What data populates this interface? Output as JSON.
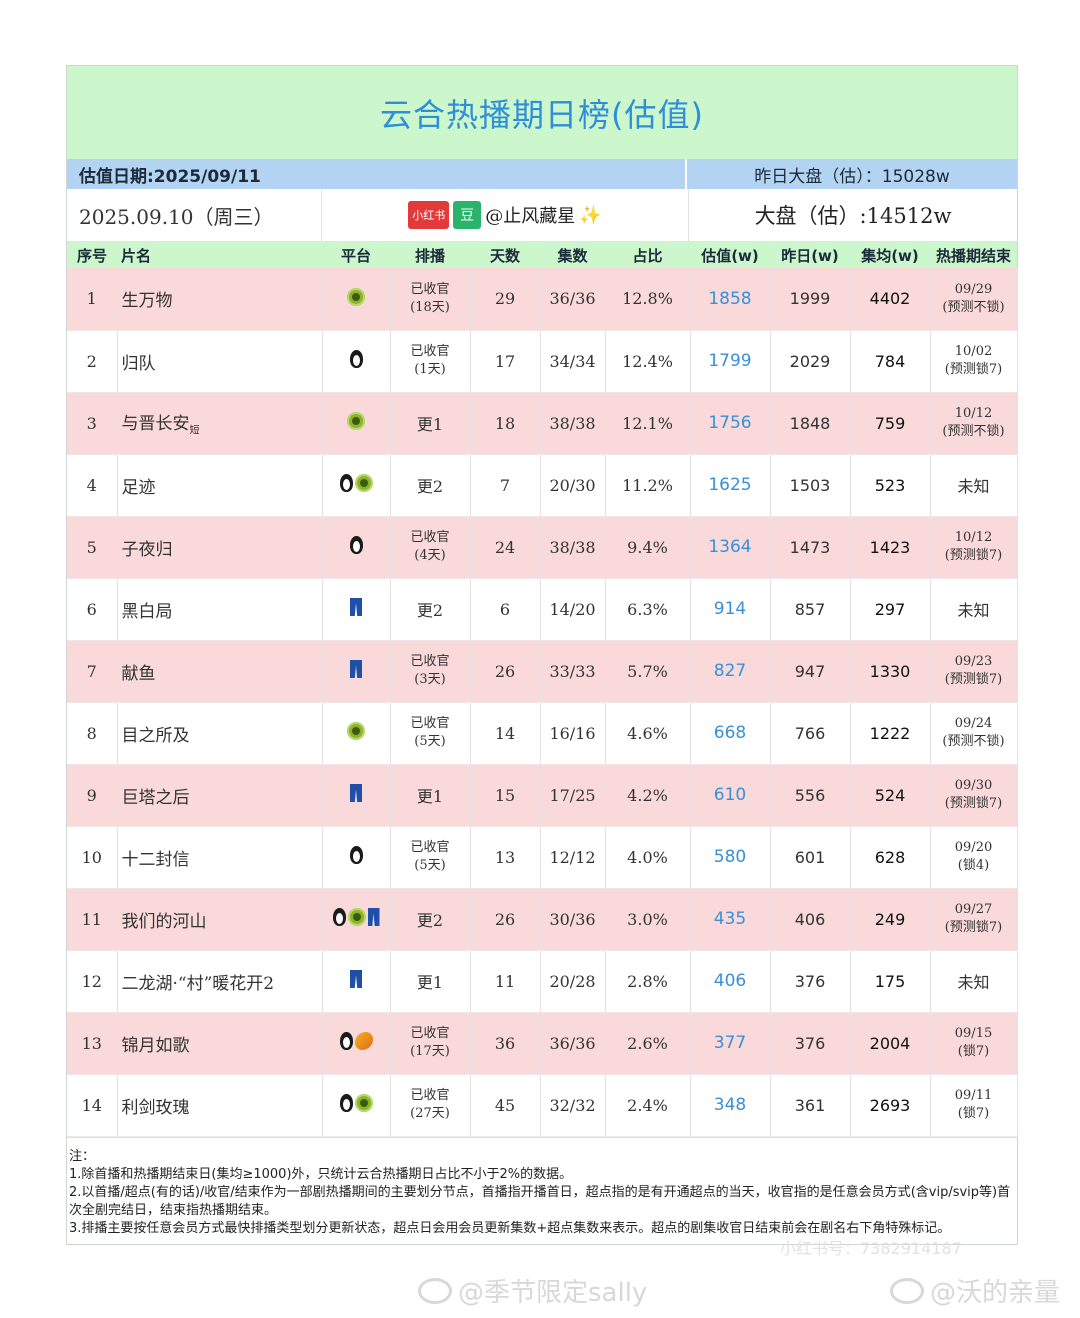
{
  "title": "云合热播期日榜(估值)",
  "date_label": "估值日期:2025/09/11",
  "yesterday_total": "昨日大盘（估）：15028w",
  "date_display": "2025.09.10（周三）",
  "source": {
    "badge1": "小红书",
    "badge2": "豆",
    "handle": "@止风藏星",
    "sparkle": "✨"
  },
  "total": "大盘（估）:14512w",
  "headers": [
    "序号",
    "片名",
    "平台",
    "排播",
    "天数",
    "集数",
    "占比",
    "估值(w)",
    "昨日(w)",
    "集均(w)",
    "热播期结束"
  ],
  "rows": [
    {
      "no": "1",
      "name": "生万物",
      "suffix": "",
      "platforms": [
        "kiwi"
      ],
      "sched": "已收官",
      "sched2": "(18天)",
      "days": "29",
      "eps": "36/36",
      "share": "12.8%",
      "est": "1858",
      "yd": "1999",
      "avg": "4402",
      "end": "09/29",
      "end2": "(预测不锁)"
    },
    {
      "no": "2",
      "name": "归队",
      "suffix": "",
      "platforms": [
        "penguin"
      ],
      "sched": "已收官",
      "sched2": "(1天)",
      "days": "17",
      "eps": "34/34",
      "share": "12.4%",
      "est": "1799",
      "yd": "2029",
      "avg": "784",
      "end": "10/02",
      "end2": "(预测锁7)"
    },
    {
      "no": "3",
      "name": "与晋长安",
      "suffix": "短",
      "platforms": [
        "kiwi"
      ],
      "sched": "更1",
      "sched2": "",
      "days": "18",
      "eps": "38/38",
      "share": "12.1%",
      "est": "1756",
      "yd": "1848",
      "avg": "759",
      "end": "10/12",
      "end2": "(预测不锁)"
    },
    {
      "no": "4",
      "name": "足迹",
      "suffix": "",
      "platforms": [
        "penguin",
        "kiwi"
      ],
      "sched": "更2",
      "sched2": "",
      "days": "7",
      "eps": "20/30",
      "share": "11.2%",
      "est": "1625",
      "yd": "1503",
      "avg": "523",
      "end": "未知",
      "end2": ""
    },
    {
      "no": "5",
      "name": "子夜归",
      "suffix": "",
      "platforms": [
        "penguin"
      ],
      "sched": "已收官",
      "sched2": "(4天)",
      "days": "24",
      "eps": "38/38",
      "share": "9.4%",
      "est": "1364",
      "yd": "1473",
      "avg": "1423",
      "end": "10/12",
      "end2": "(预测锁7)"
    },
    {
      "no": "6",
      "name": "黑白局",
      "suffix": "",
      "platforms": [
        "pants"
      ],
      "sched": "更2",
      "sched2": "",
      "days": "6",
      "eps": "14/20",
      "share": "6.3%",
      "est": "914",
      "yd": "857",
      "avg": "297",
      "end": "未知",
      "end2": ""
    },
    {
      "no": "7",
      "name": "献鱼",
      "suffix": "",
      "platforms": [
        "pants"
      ],
      "sched": "已收官",
      "sched2": "(3天)",
      "days": "26",
      "eps": "33/33",
      "share": "5.7%",
      "est": "827",
      "yd": "947",
      "avg": "1330",
      "end": "09/23",
      "end2": "(预测锁7)"
    },
    {
      "no": "8",
      "name": "目之所及",
      "suffix": "",
      "platforms": [
        "kiwi"
      ],
      "sched": "已收官",
      "sched2": "(5天)",
      "days": "14",
      "eps": "16/16",
      "share": "4.6%",
      "est": "668",
      "yd": "766",
      "avg": "1222",
      "end": "09/24",
      "end2": "(预测不锁)"
    },
    {
      "no": "9",
      "name": "巨塔之后",
      "suffix": "",
      "platforms": [
        "pants"
      ],
      "sched": "更1",
      "sched2": "",
      "days": "15",
      "eps": "17/25",
      "share": "4.2%",
      "est": "610",
      "yd": "556",
      "avg": "524",
      "end": "09/30",
      "end2": "(预测锁7)"
    },
    {
      "no": "10",
      "name": "十二封信",
      "suffix": "",
      "platforms": [
        "penguin"
      ],
      "sched": "已收官",
      "sched2": "(5天)",
      "days": "13",
      "eps": "12/12",
      "share": "4.0%",
      "est": "580",
      "yd": "601",
      "avg": "628",
      "end": "09/20",
      "end2": "(锁4)"
    },
    {
      "no": "11",
      "name": "我们的河山",
      "suffix": "",
      "platforms": [
        "penguin",
        "kiwi",
        "pants"
      ],
      "sched": "更2",
      "sched2": "",
      "days": "26",
      "eps": "30/36",
      "share": "3.0%",
      "est": "435",
      "yd": "406",
      "avg": "249",
      "end": "09/27",
      "end2": "(预测锁7)"
    },
    {
      "no": "12",
      "name": "二龙湖·“村”暖花开2",
      "suffix": "",
      "platforms": [
        "pants"
      ],
      "sched": "更1",
      "sched2": "",
      "days": "11",
      "eps": "20/28",
      "share": "2.8%",
      "est": "406",
      "yd": "376",
      "avg": "175",
      "end": "未知",
      "end2": ""
    },
    {
      "no": "13",
      "name": "锦月如歌",
      "suffix": "",
      "platforms": [
        "penguin",
        "mango"
      ],
      "sched": "已收官",
      "sched2": "(17天)",
      "days": "36",
      "eps": "36/36",
      "share": "2.6%",
      "est": "377",
      "yd": "376",
      "avg": "2004",
      "end": "09/15",
      "end2": "(锁7)"
    },
    {
      "no": "14",
      "name": "利剑玫瑰",
      "suffix": "",
      "platforms": [
        "penguin",
        "kiwi"
      ],
      "sched": "已收官",
      "sched2": "(27天)",
      "days": "45",
      "eps": "32/32",
      "share": "2.4%",
      "est": "348",
      "yd": "361",
      "avg": "2693",
      "end": "09/11",
      "end2": "(锁7)"
    }
  ],
  "notes": {
    "head": "注：",
    "n1": "1.除首播和热播期结束日(集均≥1000)外，只统计云合热播期日占比不小于2%的数据。",
    "n2": "2.以首播/超点(有的话)/收官/结束作为一部剧热播期间的主要划分节点，首播指开播首日，超点指的是有开通超点的当天，收官指的是任意会员方式(含vip/svip等)首次全剧完结日，结束指热播期结束。",
    "n3": "3.排播主要按任意会员方式最快排播类型划分更新状态，超点日会用会员更新集数+超点集数来表示。超点的剧集收官日结束前会在剧名右下角特殊标记。"
  },
  "watermark_inner": "小红书号：7382914187",
  "watermark1": "@季节限定sally",
  "watermark2": "@沃的亲量"
}
